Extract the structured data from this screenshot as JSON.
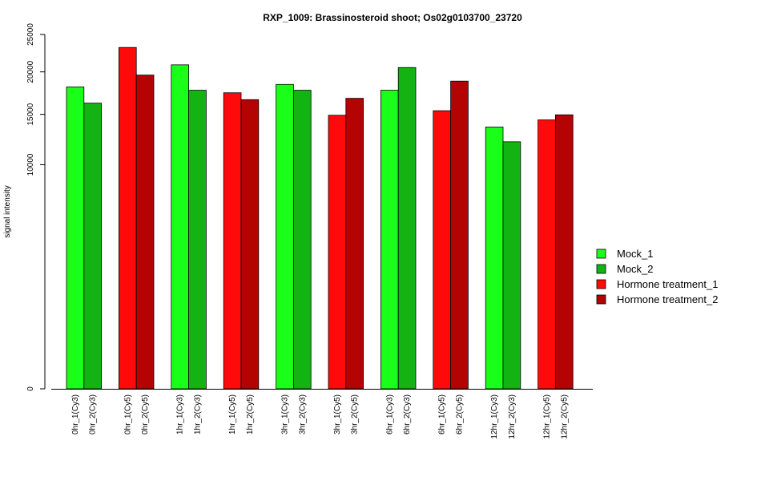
{
  "chart_data": {
    "type": "bar",
    "title": "RXP_1009: Brassinosteroid shoot; Os02g0103700_23720",
    "xlabel": "",
    "ylabel": "signal intensity",
    "y_ticks": [
      0,
      10000,
      15000,
      20000,
      25000
    ],
    "y_scale": "sqrt",
    "ylim": [
      0,
      25000
    ],
    "grid": false,
    "legend_position": "right",
    "categories": [
      "0hr_1(Cy3)",
      "0hr_2(Cy3)",
      "0hr_1(Cy5)",
      "0hr_2(Cy5)",
      "1hr_1(Cy3)",
      "1hr_2(Cy3)",
      "1hr_1(Cy5)",
      "1hr_2(Cy5)",
      "3hr_1(Cy3)",
      "3hr_2(Cy3)",
      "3hr_1(Cy5)",
      "3hr_2(Cy5)",
      "6hr_1(Cy3)",
      "6hr_2(Cy3)",
      "6hr_1(Cy5)",
      "6hr_2(Cy5)",
      "12hr_1(Cy3)",
      "12hr_2(Cy3)",
      "12hr_1(Cy5)",
      "12hr_2(Cy5)"
    ],
    "values": [
      18150,
      16250,
      23200,
      19600,
      20900,
      17750,
      17450,
      16650,
      18450,
      17750,
      14900,
      16800,
      17750,
      20550,
      15400,
      18850,
      13650,
      12150,
      14400,
      14950
    ],
    "bar_series": [
      "Mock_1",
      "Mock_2",
      "Hormone treatment_1",
      "Hormone treatment_2",
      "Mock_1",
      "Mock_2",
      "Hormone treatment_1",
      "Hormone treatment_2",
      "Mock_1",
      "Mock_2",
      "Hormone treatment_1",
      "Hormone treatment_2",
      "Mock_1",
      "Mock_2",
      "Hormone treatment_1",
      "Hormone treatment_2",
      "Mock_1",
      "Mock_2",
      "Hormone treatment_1",
      "Hormone treatment_2"
    ],
    "legend": [
      {
        "name": "Mock_1",
        "color": "#19ff19"
      },
      {
        "name": "Mock_2",
        "color": "#13b313"
      },
      {
        "name": "Hormone treatment_1",
        "color": "#ff0a0a"
      },
      {
        "name": "Hormone treatment_2",
        "color": "#b40303"
      }
    ]
  }
}
